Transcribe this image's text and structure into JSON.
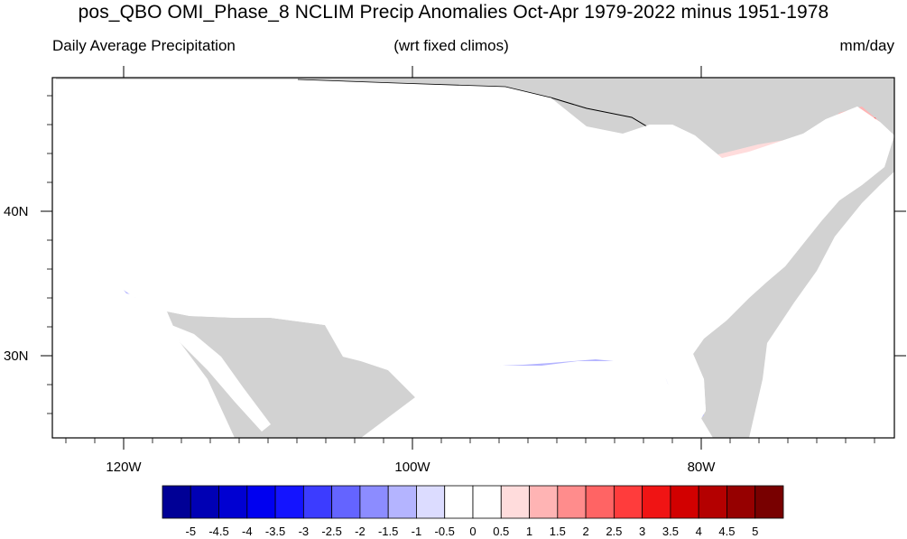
{
  "figure": {
    "title": "pos_QBO OMI_Phase_8 NCLIM Precip Anomalies Oct-Apr 1979-2022 minus 1951-1978",
    "left_string": "Daily Average Precipitation",
    "center_string": "(wrt fixed climos)",
    "right_string": "mm/day"
  },
  "axes": {
    "lon_labels": [
      "120W",
      "100W",
      "80W"
    ],
    "lat_labels": [
      "40N",
      "30N"
    ]
  },
  "colorbar": {
    "levels": [
      "-5",
      "-4.5",
      "-4",
      "-3.5",
      "-3",
      "-2.5",
      "-2",
      "-1.5",
      "-1",
      "-0.5",
      "0",
      "0.5",
      "1",
      "1.5",
      "2",
      "2.5",
      "3",
      "3.5",
      "4",
      "4.5",
      "5"
    ],
    "colors": [
      "#000096",
      "#0000b4",
      "#0000d2",
      "#0000f0",
      "#1414ff",
      "#3c3cff",
      "#6464ff",
      "#8c8cff",
      "#b4b4ff",
      "#dcdcff",
      "#ffffff",
      "#ffffff",
      "#ffdcdc",
      "#ffb4b4",
      "#ff8c8c",
      "#ff6464",
      "#ff3c3c",
      "#f01414",
      "#d20000",
      "#b40000",
      "#960000",
      "#780000"
    ]
  },
  "colors": {
    "land_mask": "#d2d2d2",
    "ocean": "#ffffff",
    "strong_wet": "#d20000",
    "strong_dry": "#1414ff"
  }
}
